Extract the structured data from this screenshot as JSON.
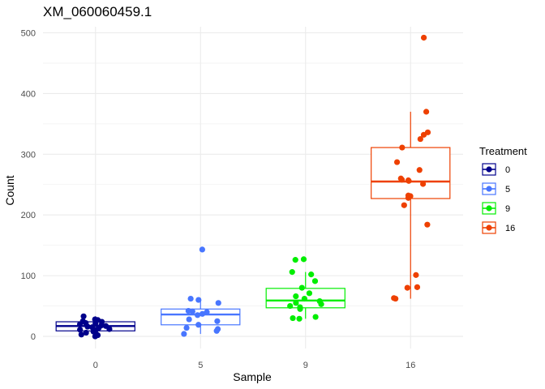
{
  "chart_data": {
    "type": "box",
    "title": "XM_060060459.1",
    "xlabel": "Sample",
    "ylabel": "Count",
    "ylim": [
      -20,
      510
    ],
    "yticks": [
      0,
      100,
      200,
      300,
      400,
      500
    ],
    "categories": [
      "0",
      "5",
      "9",
      "16"
    ],
    "grid": true,
    "legend": {
      "title": "Treatment",
      "placement": "right",
      "entries": [
        "0",
        "5",
        "9",
        "16"
      ]
    },
    "colors": {
      "0": "#00008B",
      "5": "#4876FF",
      "9": "#00EE00",
      "16": "#EE4000"
    },
    "series": [
      {
        "category": "0",
        "box": {
          "min": 0,
          "q1": 9,
          "median": 17,
          "q3": 24,
          "max": 33
        },
        "points": [
          0,
          2,
          3,
          6,
          8,
          10,
          11,
          12,
          14,
          15,
          16,
          17,
          18,
          20,
          21,
          22,
          24,
          25,
          27,
          28,
          33
        ]
      },
      {
        "category": "5",
        "box": {
          "min": 4,
          "q1": 19,
          "median": 36,
          "q3": 45,
          "max": 62
        },
        "points": [
          4,
          9,
          12,
          14,
          19,
          25,
          28,
          35,
          37,
          40,
          41,
          42,
          55,
          60,
          62,
          143
        ]
      },
      {
        "category": "9",
        "box": {
          "min": 29,
          "q1": 47,
          "median": 59,
          "q3": 79,
          "max": 106
        },
        "points": [
          29,
          30,
          32,
          45,
          48,
          50,
          53,
          55,
          58,
          62,
          66,
          71,
          80,
          91,
          102,
          106,
          126,
          127
        ]
      },
      {
        "category": "16",
        "box": {
          "min": 62,
          "q1": 227,
          "median": 255,
          "q3": 311,
          "max": 370
        },
        "points": [
          62,
          63,
          80,
          81,
          101,
          184,
          216,
          228,
          231,
          232,
          251,
          256,
          257,
          258,
          260,
          274,
          287,
          311,
          325,
          332,
          336,
          370,
          492
        ]
      }
    ]
  }
}
